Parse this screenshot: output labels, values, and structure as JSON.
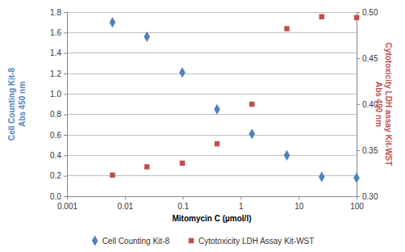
{
  "chart_data": {
    "type": "scatter",
    "x_label": "Mitomycin C (µmol/l)",
    "y_label": "Cell Counting Kit-8\nAbs 450 nm",
    "y2_label": "Cytotoxicity LDH assay Kit-WST\nAbs 490 nm",
    "log": "x",
    "grid": true,
    "legend": "bottom",
    "x": [
      0.0061,
      0.024,
      0.098,
      0.39,
      1.56,
      6.25,
      25,
      100
    ],
    "xlim": [
      0.001,
      100
    ],
    "xticks": [
      0.001,
      0.01,
      0.1,
      1,
      10,
      100
    ],
    "ylim": [
      0,
      1.8
    ],
    "yticks": [
      {
        "value": 0,
        "label": "0.0"
      },
      0.2,
      0.4,
      0.6,
      0.8,
      {
        "value": 1,
        "label": "1.0"
      },
      1.2,
      1.4,
      1.6,
      1.8
    ],
    "y2lim": [
      0.3,
      0.5
    ],
    "y2ticks": [
      {
        "value": 0.3,
        "label": "0.30"
      },
      0.35,
      {
        "value": 0.4,
        "label": "0.40"
      },
      0.45,
      {
        "value": 0.5,
        "label": "0.50"
      }
    ],
    "series": [
      {
        "name": "Cell Counting Kit-8",
        "color": "#4f81bd",
        "marker": "diamond",
        "axis": "y",
        "values": [
          1.7,
          1.56,
          1.21,
          0.85,
          0.61,
          0.4,
          0.19,
          0.18
        ]
      },
      {
        "name": "Cytotoxicity LDH Assay Kit-WST",
        "color": "#c0504d",
        "marker": "square",
        "axis": "y2",
        "values": [
          0.323,
          0.332,
          0.336,
          0.357,
          0.4,
          0.482,
          0.495,
          0.494
        ]
      }
    ]
  }
}
